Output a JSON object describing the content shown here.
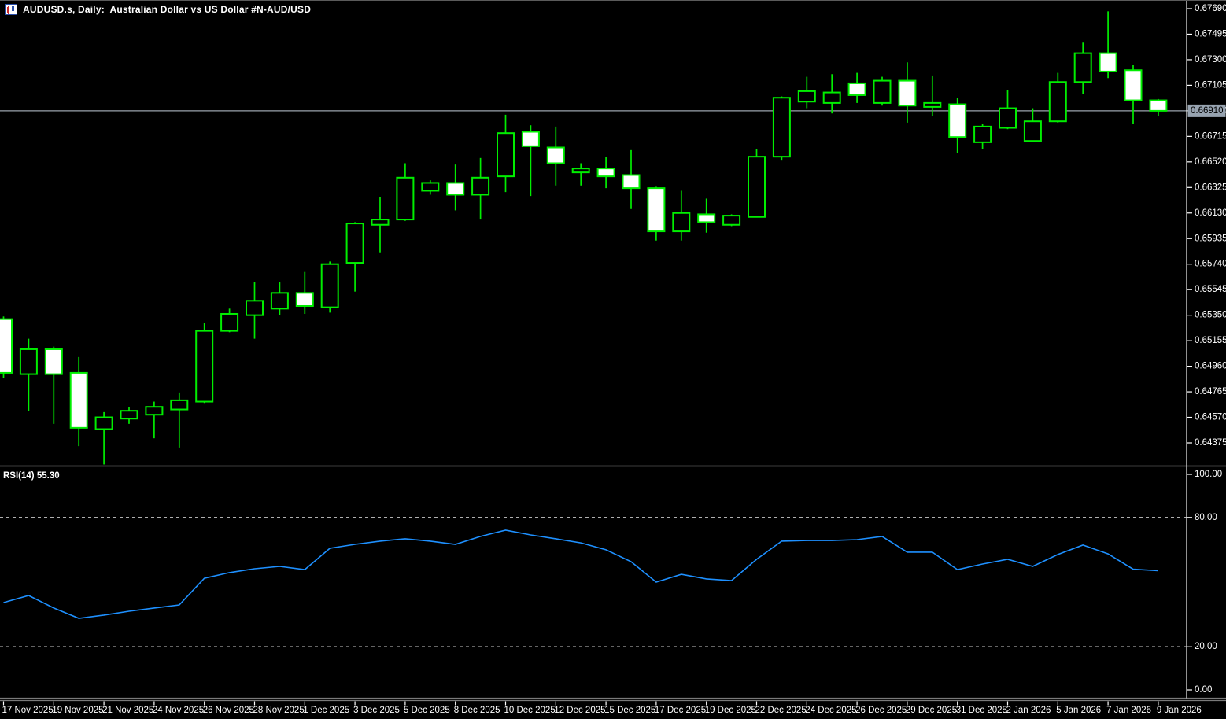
{
  "window": {
    "title": "AUDUSD.s, Daily:  Australian Dollar vs US Dollar #N-AUD/USD"
  },
  "colors": {
    "background": "#000000",
    "candle_outline": "#00EE00",
    "bear_fill": "#FFFFFF",
    "bull_fill": "#000000",
    "price_line": "#9aa3ad",
    "price_badge_bg": "#97a3b0",
    "price_badge_text": "#000000",
    "rsi_line": "#1E90FF",
    "level_dashed": "#c8c8c8",
    "axis_line": "#e0e0e0",
    "axis_text": "#FFFFFF",
    "pane_divider": "#7a7a7a"
  },
  "price_axis": {
    "labels": [
      "0.67690",
      "0.67495",
      "0.67300",
      "0.67105",
      "0.66910",
      "0.66715",
      "0.66520",
      "0.66325",
      "0.66130",
      "0.65935",
      "0.65740",
      "0.65545",
      "0.65350",
      "0.65155",
      "0.64960",
      "0.64765",
      "0.64570",
      "0.64375"
    ],
    "current_price_label": "0.66910"
  },
  "time_axis": {
    "labels": [
      "17 Nov 2025",
      "19 Nov 2025",
      "21 Nov 2025",
      "24 Nov 2025",
      "26 Nov 2025",
      "28 Nov 2025",
      "1 Dec 2025",
      "3 Dec 2025",
      "5 Dec 2025",
      "8 Dec 2025",
      "10 Dec 2025",
      "12 Dec 2025",
      "15 Dec 2025",
      "17 Dec 2025",
      "19 Dec 2025",
      "22 Dec 2025",
      "24 Dec 2025",
      "26 Dec 2025",
      "29 Dec 2025",
      "31 Dec 2025",
      "2 Jan 2026",
      "5 Jan 2026",
      "7 Jan 2026",
      "9 Jan 2026"
    ]
  },
  "rsi": {
    "label": "RSI(14)",
    "value": "55.30",
    "level_labels": [
      "100.00",
      "80.00",
      "20.00",
      "0.00"
    ]
  },
  "chart_data": [
    {
      "type": "candlestick",
      "title": "AUDUSD.s Daily",
      "symbol": "AUDUSD.s",
      "timeframe": "Daily",
      "current_price": 0.6691,
      "ylim": [
        0.6418,
        0.67755
      ],
      "y_tick_step": 0.00195,
      "x_labels": [
        "17 Nov 2025",
        "19 Nov 2025",
        "21 Nov 2025",
        "24 Nov 2025",
        "26 Nov 2025",
        "28 Nov 2025",
        "1 Dec 2025",
        "3 Dec 2025",
        "5 Dec 2025",
        "8 Dec 2025",
        "10 Dec 2025",
        "12 Dec 2025",
        "15 Dec 2025",
        "17 Dec 2025",
        "19 Dec 2025",
        "22 Dec 2025",
        "24 Dec 2025",
        "26 Dec 2025",
        "29 Dec 2025",
        "31 Dec 2025",
        "2 Jan 2026",
        "5 Jan 2026",
        "7 Jan 2026",
        "9 Jan 2026"
      ],
      "series": [
        {
          "name": "AUDUSD.s",
          "ohlc": [
            [
              0.6532,
              0.6534,
              0.6487,
              0.6491
            ],
            [
              0.649,
              0.6517,
              0.6462,
              0.6509
            ],
            [
              0.6509,
              0.6511,
              0.6452,
              0.649
            ],
            [
              0.6491,
              0.6503,
              0.6435,
              0.6449
            ],
            [
              0.6448,
              0.6461,
              0.6421,
              0.6457
            ],
            [
              0.6456,
              0.6465,
              0.6452,
              0.6462
            ],
            [
              0.6459,
              0.6469,
              0.6441,
              0.6465
            ],
            [
              0.6463,
              0.6476,
              0.6434,
              0.647
            ],
            [
              0.6469,
              0.6529,
              0.6468,
              0.6523
            ],
            [
              0.6523,
              0.654,
              0.6522,
              0.6536
            ],
            [
              0.6535,
              0.656,
              0.6517,
              0.6546
            ],
            [
              0.654,
              0.656,
              0.6535,
              0.6552
            ],
            [
              0.6552,
              0.6568,
              0.6536,
              0.6542
            ],
            [
              0.6541,
              0.6576,
              0.6537,
              0.6574
            ],
            [
              0.6575,
              0.6606,
              0.6553,
              0.6605
            ],
            [
              0.6604,
              0.6625,
              0.6583,
              0.6608
            ],
            [
              0.6608,
              0.6651,
              0.6607,
              0.664
            ],
            [
              0.663,
              0.6638,
              0.6627,
              0.6636
            ],
            [
              0.6636,
              0.665,
              0.6615,
              0.6627
            ],
            [
              0.6627,
              0.6655,
              0.6608,
              0.664
            ],
            [
              0.6641,
              0.6688,
              0.6629,
              0.6674
            ],
            [
              0.6675,
              0.668,
              0.6626,
              0.6664
            ],
            [
              0.6663,
              0.6679,
              0.6634,
              0.6651
            ],
            [
              0.6644,
              0.6651,
              0.6634,
              0.6647
            ],
            [
              0.6647,
              0.6656,
              0.6632,
              0.6641
            ],
            [
              0.6642,
              0.6661,
              0.6616,
              0.6632
            ],
            [
              0.6632,
              0.6633,
              0.6592,
              0.6599
            ],
            [
              0.6599,
              0.663,
              0.6592,
              0.6613
            ],
            [
              0.6612,
              0.6624,
              0.6598,
              0.6606
            ],
            [
              0.6604,
              0.6612,
              0.6603,
              0.6611
            ],
            [
              0.661,
              0.6662,
              0.661,
              0.6656
            ],
            [
              0.6656,
              0.6702,
              0.6653,
              0.6701
            ],
            [
              0.6698,
              0.6717,
              0.6693,
              0.6706
            ],
            [
              0.6697,
              0.6719,
              0.6689,
              0.6705
            ],
            [
              0.6712,
              0.672,
              0.6697,
              0.6703
            ],
            [
              0.6697,
              0.6717,
              0.6695,
              0.6714
            ],
            [
              0.6714,
              0.6728,
              0.6682,
              0.6695
            ],
            [
              0.6694,
              0.6718,
              0.6687,
              0.6697
            ],
            [
              0.6696,
              0.6701,
              0.6659,
              0.6671
            ],
            [
              0.6667,
              0.6681,
              0.6662,
              0.6679
            ],
            [
              0.6678,
              0.6707,
              0.6677,
              0.6693
            ],
            [
              0.6668,
              0.6693,
              0.6667,
              0.6683
            ],
            [
              0.6683,
              0.672,
              0.6682,
              0.6713
            ],
            [
              0.6713,
              0.6743,
              0.6704,
              0.6735
            ],
            [
              0.6735,
              0.6767,
              0.6716,
              0.6721
            ],
            [
              0.6722,
              0.6726,
              0.6681,
              0.6699
            ],
            [
              0.6699,
              0.67,
              0.6687,
              0.6691
            ]
          ]
        }
      ]
    },
    {
      "type": "line",
      "name": "RSI(14)",
      "last_value": 55.3,
      "ylim": [
        0,
        100
      ],
      "levels": [
        80,
        20
      ],
      "values": [
        40.5,
        43.8,
        38.0,
        33.2,
        34.7,
        36.5,
        38.0,
        39.4,
        51.8,
        54.4,
        56.2,
        57.3,
        55.8,
        65.7,
        67.5,
        69.0,
        70.1,
        69.0,
        67.5,
        71.2,
        74.1,
        71.9,
        70.1,
        68.2,
        65.0,
        59.5,
        50.0,
        53.6,
        51.5,
        50.7,
        60.6,
        69.0,
        69.3,
        69.3,
        69.7,
        71.2,
        63.9,
        63.9,
        55.8,
        58.4,
        60.6,
        57.3,
        62.8,
        67.2,
        63.1,
        56.0,
        55.3
      ]
    }
  ]
}
